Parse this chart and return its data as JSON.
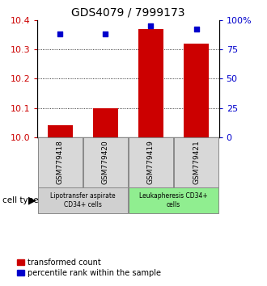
{
  "title": "GDS4079 / 7999173",
  "samples": [
    "GSM779418",
    "GSM779420",
    "GSM779419",
    "GSM779421"
  ],
  "red_values": [
    10.04,
    10.1,
    10.37,
    10.32
  ],
  "blue_values": [
    88,
    88,
    95,
    92
  ],
  "left_ylim": [
    10.0,
    10.4
  ],
  "left_yticks": [
    10.0,
    10.1,
    10.2,
    10.3,
    10.4
  ],
  "right_ylim": [
    0,
    100
  ],
  "right_yticks": [
    0,
    25,
    50,
    75,
    100
  ],
  "right_yticklabels": [
    "0",
    "25",
    "50",
    "75",
    "100%"
  ],
  "red_color": "#cc0000",
  "blue_color": "#0000cc",
  "group1_label": "Lipotransfer aspirate\nCD34+ cells",
  "group2_label": "Leukapheresis CD34+\ncells",
  "group1_color": "#d0d0d0",
  "group2_color": "#90ee90",
  "sample_box_color": "#d8d8d8",
  "legend_red": "transformed count",
  "legend_blue": "percentile rank within the sample",
  "bar_width": 0.55,
  "dotted_lines": [
    10.1,
    10.2,
    10.3
  ]
}
